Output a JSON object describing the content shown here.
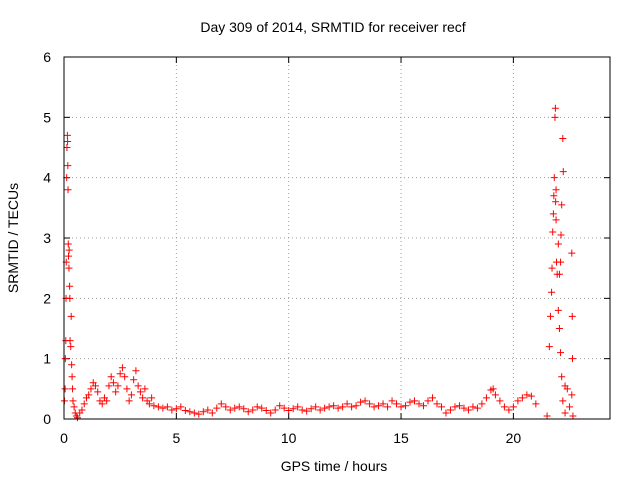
{
  "chart_data": {
    "type": "scatter",
    "title": "Day 309 of 2014, SRMTID for receiver recf",
    "xlabel": "GPS time / hours",
    "ylabel": "SRMTID / TECUs",
    "xlim": [
      0,
      24.3
    ],
    "ylim": [
      0,
      6
    ],
    "xticks": [
      0,
      5,
      10,
      15,
      20
    ],
    "yticks": [
      0,
      1,
      2,
      3,
      4,
      5,
      6
    ],
    "grid": true,
    "marker": "+",
    "series_color": "#ff0000",
    "series": [
      {
        "name": "SRMTID",
        "points": [
          [
            0.02,
            0.3
          ],
          [
            0.05,
            0.5
          ],
          [
            0.06,
            1.0
          ],
          [
            0.08,
            1.3
          ],
          [
            0.09,
            2.0
          ],
          [
            0.1,
            2.6
          ],
          [
            0.12,
            4.0
          ],
          [
            0.13,
            4.5
          ],
          [
            0.15,
            4.7
          ],
          [
            0.16,
            4.6
          ],
          [
            0.17,
            4.2
          ],
          [
            0.18,
            3.8
          ],
          [
            0.19,
            2.9
          ],
          [
            0.2,
            2.7
          ],
          [
            0.22,
            2.5
          ],
          [
            0.23,
            2.8
          ],
          [
            0.25,
            2.2
          ],
          [
            0.26,
            2.0
          ],
          [
            0.27,
            1.3
          ],
          [
            0.3,
            1.2
          ],
          [
            0.32,
            1.7
          ],
          [
            0.34,
            0.9
          ],
          [
            0.36,
            0.7
          ],
          [
            0.38,
            0.5
          ],
          [
            0.4,
            0.3
          ],
          [
            0.45,
            0.2
          ],
          [
            0.5,
            0.1
          ],
          [
            0.55,
            0.05
          ],
          [
            0.6,
            0.02
          ],
          [
            0.7,
            0.1
          ],
          [
            0.8,
            0.15
          ],
          [
            0.9,
            0.25
          ],
          [
            1.0,
            0.35
          ],
          [
            1.1,
            0.4
          ],
          [
            1.2,
            0.5
          ],
          [
            1.3,
            0.6
          ],
          [
            1.4,
            0.55
          ],
          [
            1.5,
            0.45
          ],
          [
            1.6,
            0.3
          ],
          [
            1.7,
            0.25
          ],
          [
            1.8,
            0.35
          ],
          [
            1.9,
            0.3
          ],
          [
            2.0,
            0.55
          ],
          [
            2.1,
            0.7
          ],
          [
            2.2,
            0.6
          ],
          [
            2.3,
            0.45
          ],
          [
            2.4,
            0.55
          ],
          [
            2.5,
            0.75
          ],
          [
            2.6,
            0.85
          ],
          [
            2.7,
            0.7
          ],
          [
            2.8,
            0.5
          ],
          [
            2.9,
            0.3
          ],
          [
            3.0,
            0.4
          ],
          [
            3.1,
            0.65
          ],
          [
            3.2,
            0.8
          ],
          [
            3.3,
            0.55
          ],
          [
            3.4,
            0.45
          ],
          [
            3.5,
            0.35
          ],
          [
            3.6,
            0.5
          ],
          [
            3.7,
            0.3
          ],
          [
            3.8,
            0.25
          ],
          [
            3.9,
            0.35
          ],
          [
            4.0,
            0.22
          ],
          [
            4.2,
            0.2
          ],
          [
            4.4,
            0.18
          ],
          [
            4.6,
            0.2
          ],
          [
            4.8,
            0.15
          ],
          [
            5.0,
            0.17
          ],
          [
            5.2,
            0.2
          ],
          [
            5.4,
            0.14
          ],
          [
            5.6,
            0.12
          ],
          [
            5.8,
            0.1
          ],
          [
            6.0,
            0.08
          ],
          [
            6.2,
            0.12
          ],
          [
            6.4,
            0.15
          ],
          [
            6.6,
            0.1
          ],
          [
            6.8,
            0.18
          ],
          [
            7.0,
            0.25
          ],
          [
            7.2,
            0.2
          ],
          [
            7.4,
            0.15
          ],
          [
            7.6,
            0.18
          ],
          [
            7.8,
            0.2
          ],
          [
            8.0,
            0.17
          ],
          [
            8.2,
            0.12
          ],
          [
            8.4,
            0.15
          ],
          [
            8.6,
            0.2
          ],
          [
            8.8,
            0.18
          ],
          [
            9.0,
            0.14
          ],
          [
            9.2,
            0.1
          ],
          [
            9.4,
            0.15
          ],
          [
            9.6,
            0.22
          ],
          [
            9.8,
            0.18
          ],
          [
            10.0,
            0.14
          ],
          [
            10.2,
            0.17
          ],
          [
            10.4,
            0.2
          ],
          [
            10.6,
            0.15
          ],
          [
            10.8,
            0.13
          ],
          [
            11.0,
            0.17
          ],
          [
            11.2,
            0.2
          ],
          [
            11.4,
            0.15
          ],
          [
            11.6,
            0.18
          ],
          [
            11.8,
            0.2
          ],
          [
            12.0,
            0.22
          ],
          [
            12.2,
            0.18
          ],
          [
            12.4,
            0.2
          ],
          [
            12.6,
            0.25
          ],
          [
            12.8,
            0.2
          ],
          [
            13.0,
            0.22
          ],
          [
            13.2,
            0.28
          ],
          [
            13.4,
            0.3
          ],
          [
            13.6,
            0.25
          ],
          [
            13.8,
            0.2
          ],
          [
            14.0,
            0.22
          ],
          [
            14.2,
            0.25
          ],
          [
            14.4,
            0.2
          ],
          [
            14.6,
            0.3
          ],
          [
            14.8,
            0.25
          ],
          [
            15.0,
            0.2
          ],
          [
            15.2,
            0.22
          ],
          [
            15.4,
            0.28
          ],
          [
            15.6,
            0.3
          ],
          [
            15.8,
            0.25
          ],
          [
            16.0,
            0.22
          ],
          [
            16.2,
            0.3
          ],
          [
            16.4,
            0.35
          ],
          [
            16.6,
            0.25
          ],
          [
            16.8,
            0.2
          ],
          [
            17.0,
            0.1
          ],
          [
            17.2,
            0.15
          ],
          [
            17.4,
            0.2
          ],
          [
            17.6,
            0.22
          ],
          [
            17.8,
            0.18
          ],
          [
            18.0,
            0.15
          ],
          [
            18.2,
            0.2
          ],
          [
            18.4,
            0.18
          ],
          [
            18.6,
            0.25
          ],
          [
            18.8,
            0.35
          ],
          [
            19.0,
            0.48
          ],
          [
            19.1,
            0.5
          ],
          [
            19.2,
            0.4
          ],
          [
            19.4,
            0.3
          ],
          [
            19.6,
            0.2
          ],
          [
            19.8,
            0.15
          ],
          [
            20.0,
            0.2
          ],
          [
            20.2,
            0.3
          ],
          [
            20.4,
            0.35
          ],
          [
            20.6,
            0.4
          ],
          [
            20.8,
            0.38
          ],
          [
            21.0,
            0.25
          ],
          [
            21.5,
            0.05
          ],
          [
            21.6,
            1.2
          ],
          [
            21.65,
            1.7
          ],
          [
            21.7,
            2.1
          ],
          [
            21.72,
            2.5
          ],
          [
            21.75,
            3.1
          ],
          [
            21.78,
            3.4
          ],
          [
            21.8,
            3.7
          ],
          [
            21.82,
            4.0
          ],
          [
            21.85,
            5.0
          ],
          [
            21.87,
            5.15
          ],
          [
            21.9,
            3.3
          ],
          [
            21.92,
            2.6
          ],
          [
            21.95,
            2.4
          ],
          [
            22.0,
            1.8
          ],
          [
            22.05,
            1.5
          ],
          [
            22.1,
            1.1
          ],
          [
            22.15,
            0.7
          ],
          [
            22.2,
            0.3
          ],
          [
            22.3,
            0.1
          ],
          [
            22.4,
            0.5
          ],
          [
            22.5,
            0.2
          ],
          [
            22.6,
            0.4
          ],
          [
            22.65,
            0.05
          ],
          [
            21.88,
            3.6
          ],
          [
            21.9,
            3.8
          ],
          [
            22.0,
            2.9
          ],
          [
            22.05,
            2.4
          ],
          [
            22.1,
            2.6
          ],
          [
            22.12,
            3.05
          ],
          [
            22.15,
            3.55
          ],
          [
            22.2,
            4.65
          ],
          [
            22.22,
            4.1
          ],
          [
            22.3,
            0.55
          ],
          [
            22.6,
            2.75
          ],
          [
            22.62,
            1.7
          ],
          [
            22.63,
            1.0
          ]
        ]
      }
    ]
  }
}
